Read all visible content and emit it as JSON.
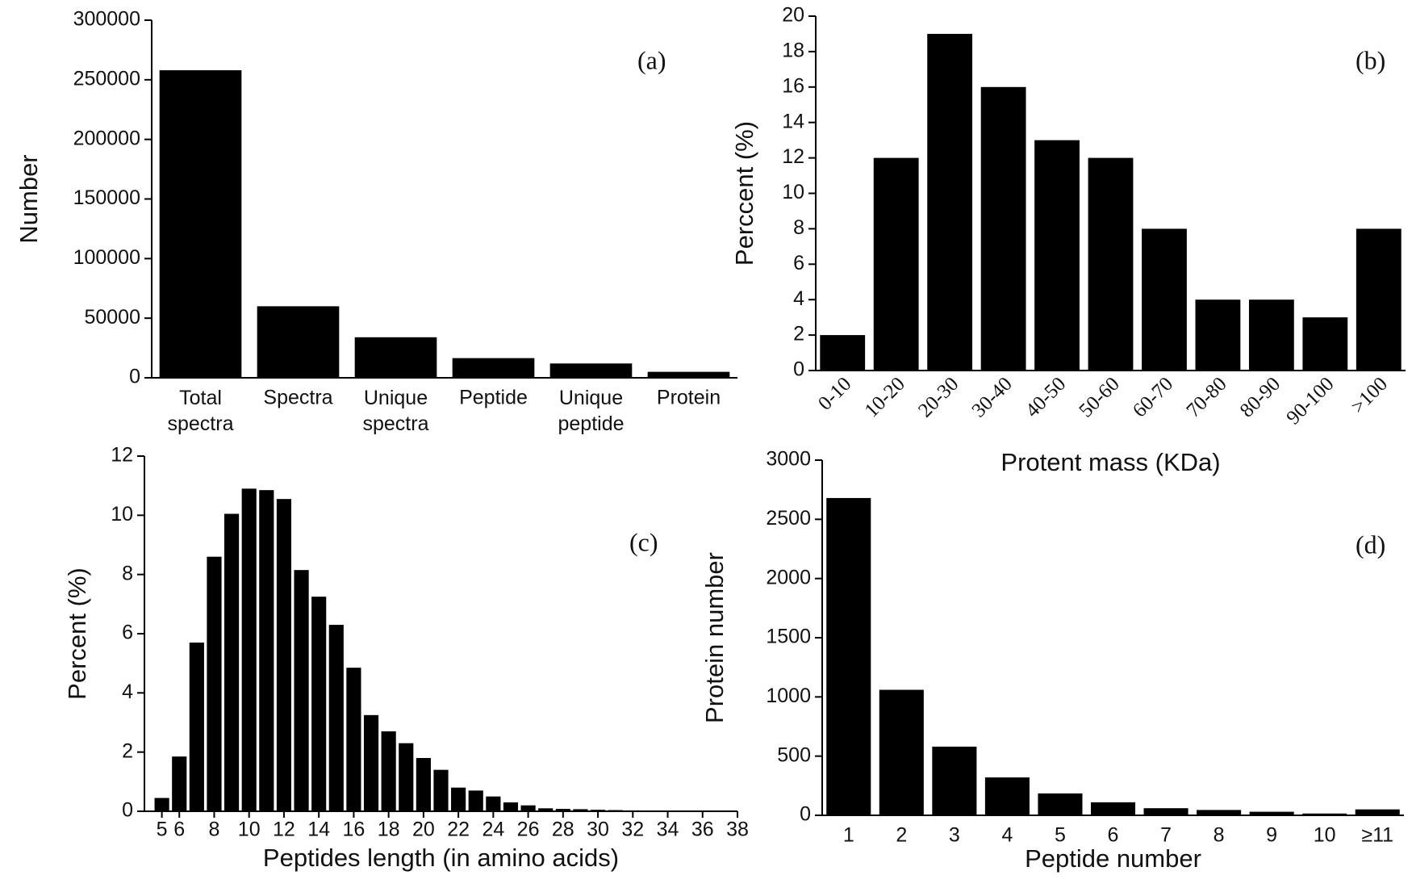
{
  "chart_data": [
    {
      "type": "bar",
      "annotation": "(a)",
      "ylabel": "Number",
      "categories": [
        "Total spectra",
        "Spectra",
        "Unique spectra",
        "Peptide",
        "Unique peptide",
        "Protein"
      ],
      "values": [
        258000,
        60000,
        34000,
        16500,
        12000,
        5000
      ],
      "color": "#000000",
      "ylim": [
        0,
        300000
      ],
      "yticks": [
        0,
        50000,
        100000,
        150000,
        200000,
        250000,
        300000
      ]
    },
    {
      "type": "bar",
      "annotation": "(b)",
      "ylabel": "Perccent (%)",
      "xlabel": "Protent mass (KDa)",
      "categories": [
        "0-10",
        "10-20",
        "20-30",
        "30-40",
        "40-50",
        "50-60",
        "60-70",
        "70-80",
        "80-90",
        "90-100",
        ">100"
      ],
      "values": [
        2,
        12,
        19,
        16,
        13,
        12,
        8,
        4,
        4,
        3,
        8
      ],
      "color": "#000000",
      "ylim": [
        0,
        20
      ],
      "yticks": [
        0,
        2,
        4,
        6,
        8,
        10,
        12,
        14,
        16,
        18,
        20
      ]
    },
    {
      "type": "bar",
      "annotation": "(c)",
      "ylabel": "Percent (%)",
      "xlabel": "Peptides length (in amino acids)",
      "x": [
        5,
        6,
        7,
        8,
        9,
        10,
        11,
        12,
        13,
        14,
        15,
        16,
        17,
        18,
        19,
        20,
        21,
        22,
        23,
        24,
        25,
        26,
        27,
        28,
        29,
        30,
        31,
        32,
        33,
        34,
        35,
        36,
        37
      ],
      "values": [
        0.45,
        1.85,
        5.7,
        8.6,
        10.05,
        10.9,
        10.85,
        10.55,
        8.15,
        7.25,
        6.3,
        4.85,
        3.25,
        2.7,
        2.3,
        1.8,
        1.4,
        0.8,
        0.7,
        0.5,
        0.3,
        0.2,
        0.1,
        0.08,
        0.07,
        0.05,
        0.04,
        0.03,
        0.02,
        0.02,
        0.01,
        0.01,
        0.01
      ],
      "color": "#000000",
      "xlim": [
        4,
        38
      ],
      "xticks": [
        5,
        6,
        8,
        10,
        12,
        14,
        16,
        18,
        20,
        22,
        24,
        26,
        28,
        30,
        32,
        34,
        36,
        38
      ],
      "ylim": [
        0,
        12
      ],
      "yticks": [
        0,
        2,
        4,
        6,
        8,
        10,
        12
      ]
    },
    {
      "type": "bar",
      "annotation": "(d)",
      "ylabel": "Protein number",
      "xlabel": "Peptide number",
      "categories": [
        "1",
        "2",
        "3",
        "4",
        "5",
        "6",
        "7",
        "8",
        "9",
        "10",
        "≥11"
      ],
      "values": [
        2680,
        1060,
        580,
        320,
        185,
        110,
        60,
        45,
        30,
        15,
        50
      ],
      "color": "#000000",
      "ylim": [
        0,
        3000
      ],
      "yticks": [
        0,
        500,
        1000,
        1500,
        2000,
        2500,
        3000
      ]
    }
  ]
}
